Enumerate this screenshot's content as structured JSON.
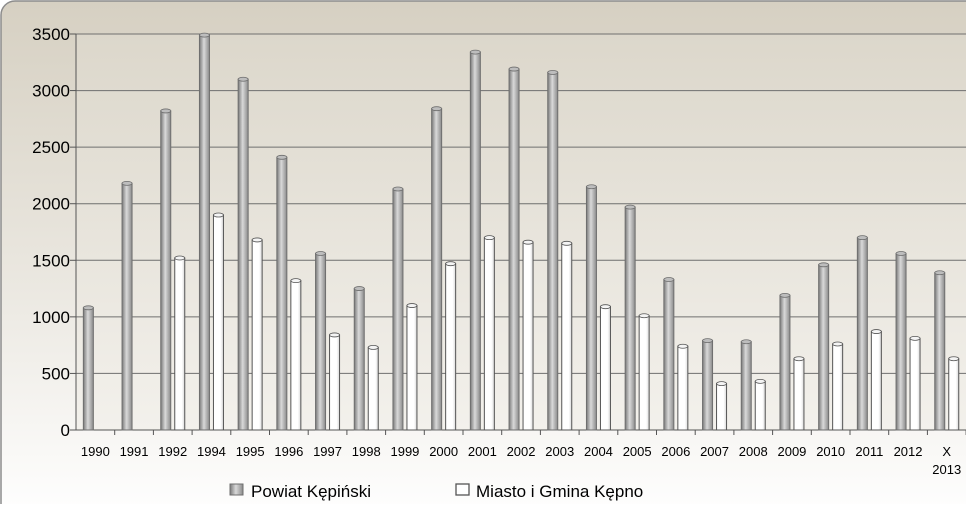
{
  "chart_data": {
    "type": "bar",
    "categories": [
      "1990",
      "1991",
      "1992",
      "1994",
      "1995",
      "1996",
      "1997",
      "1998",
      "1999",
      "2000",
      "2001",
      "2002",
      "2003",
      "2004",
      "2005",
      "2006",
      "2007",
      "2008",
      "2009",
      "2010",
      "2011",
      "2012",
      "X\n2013"
    ],
    "series": [
      {
        "name": "Powiat Kępiński",
        "color": "#a6a6a6",
        "values": [
          1080,
          2180,
          2820,
          3490,
          3100,
          2410,
          1560,
          1250,
          2130,
          2840,
          3340,
          3190,
          3160,
          2150,
          1970,
          1330,
          790,
          780,
          1190,
          1460,
          1700,
          1560,
          1390
        ]
      },
      {
        "name": "Miasto i Gmina Kępno",
        "color": "#ffffff",
        "values": [
          null,
          null,
          1520,
          1900,
          1680,
          1320,
          840,
          730,
          1100,
          1470,
          1700,
          1660,
          1650,
          1090,
          1010,
          740,
          410,
          430,
          630,
          760,
          870,
          810,
          630
        ]
      }
    ],
    "y_ticks": [
      "0",
      "500",
      "1000",
      "1500",
      "2000",
      "2500",
      "3000",
      "3500"
    ],
    "ylim": [
      0,
      3500
    ],
    "grid": true,
    "legend_position": "bottom"
  }
}
